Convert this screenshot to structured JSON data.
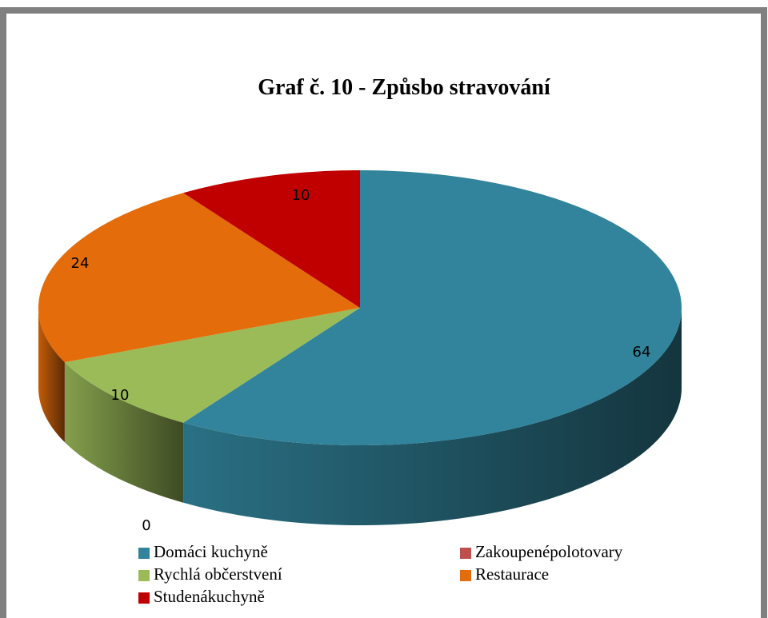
{
  "chart_data": {
    "type": "pie3d",
    "title": "Graf č. 10 - Způsbo stravování",
    "categories": [
      "Domáci kuchyně",
      "Zakoupenépolotovary",
      "Rychlá občerstvení",
      "Restaurace",
      "Studenákuchyně"
    ],
    "values": [
      64,
      0,
      10,
      24,
      10
    ],
    "colors": [
      "#31849b",
      "#c0504d",
      "#9bbb59",
      "#e46c0a",
      "#c00000"
    ]
  }
}
